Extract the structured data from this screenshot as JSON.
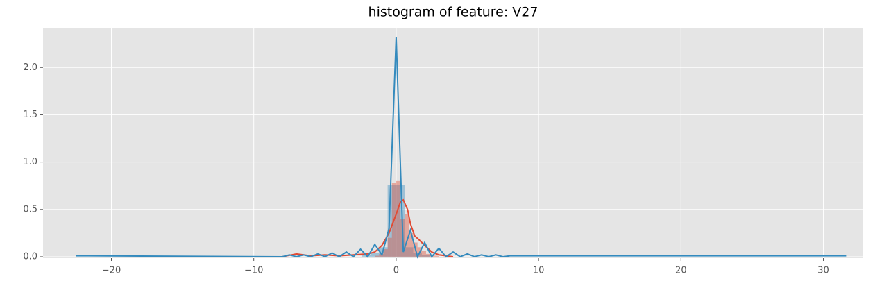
{
  "chart_data": {
    "type": "histogram",
    "title": "histogram of feature: V27",
    "xlim": [
      -24.8,
      32.8
    ],
    "ylim": [
      -0.015,
      2.42
    ],
    "xticks": [
      {
        "value": -20,
        "label": "−20"
      },
      {
        "value": -10,
        "label": "−10"
      },
      0,
      10,
      20,
      30
    ],
    "yticks": [
      {
        "value": 0,
        "label": "0.0"
      },
      0.5,
      {
        "value": 1,
        "label": "1.0"
      },
      1.5,
      {
        "value": 2,
        "label": "2.0"
      }
    ],
    "grid": true,
    "series": [
      {
        "color": "#348abd",
        "bins": [
          -2.4,
          -1.8,
          -1.2,
          -0.6,
          0,
          0.6,
          1.2,
          1.8,
          2.4
        ],
        "counts": [
          0.02,
          0.04,
          0.1,
          0.76,
          0.76,
          0.1,
          0.04,
          0.02
        ],
        "kde_x": [
          -22.5,
          -8,
          -7.5,
          -7,
          -6.5,
          -6,
          -5.5,
          -5,
          -4.5,
          -4,
          -3.5,
          -3,
          -2.5,
          -2,
          -1.5,
          -1,
          -0.5,
          0,
          0.5,
          1,
          1.5,
          2,
          2.5,
          3,
          3.5,
          4,
          4.5,
          5,
          5.5,
          6,
          6.5,
          7,
          7.5,
          8,
          31.6
        ],
        "kde_y": [
          0.01,
          0,
          0.02,
          0,
          0.02,
          0,
          0.03,
          0,
          0.04,
          0,
          0.05,
          0,
          0.08,
          0,
          0.13,
          0.02,
          0.3,
          2.32,
          0.05,
          0.28,
          0,
          0.15,
          0,
          0.09,
          0,
          0.05,
          0,
          0.03,
          0,
          0.02,
          0,
          0.02,
          0,
          0.01,
          0.01
        ]
      },
      {
        "color": "#e24a33",
        "bins": [
          -1.5,
          -1.2,
          -0.9,
          -0.6,
          -0.3,
          0,
          0.3,
          0.6,
          0.9,
          1.2,
          1.5,
          1.8,
          2.1,
          2.4,
          2.7,
          3.0
        ],
        "counts": [
          0.01,
          0.03,
          0.08,
          0.2,
          0.78,
          0.8,
          0.4,
          0.45,
          0.25,
          0.15,
          0.1,
          0.06,
          0.03,
          0.02,
          0.01
        ],
        "kde_x": [
          -8,
          -7,
          -6,
          -5,
          -4,
          -3,
          -2,
          -1.5,
          -1,
          -0.5,
          0,
          0.3,
          0.5,
          0.8,
          1,
          1.3,
          1.6,
          2,
          2.5,
          3,
          3.5,
          4
        ],
        "kde_y": [
          0,
          0.03,
          0.01,
          0.02,
          0.01,
          0.02,
          0.03,
          0.05,
          0.12,
          0.25,
          0.45,
          0.58,
          0.6,
          0.5,
          0.35,
          0.22,
          0.18,
          0.12,
          0.05,
          0.02,
          0.01,
          0
        ]
      }
    ]
  }
}
